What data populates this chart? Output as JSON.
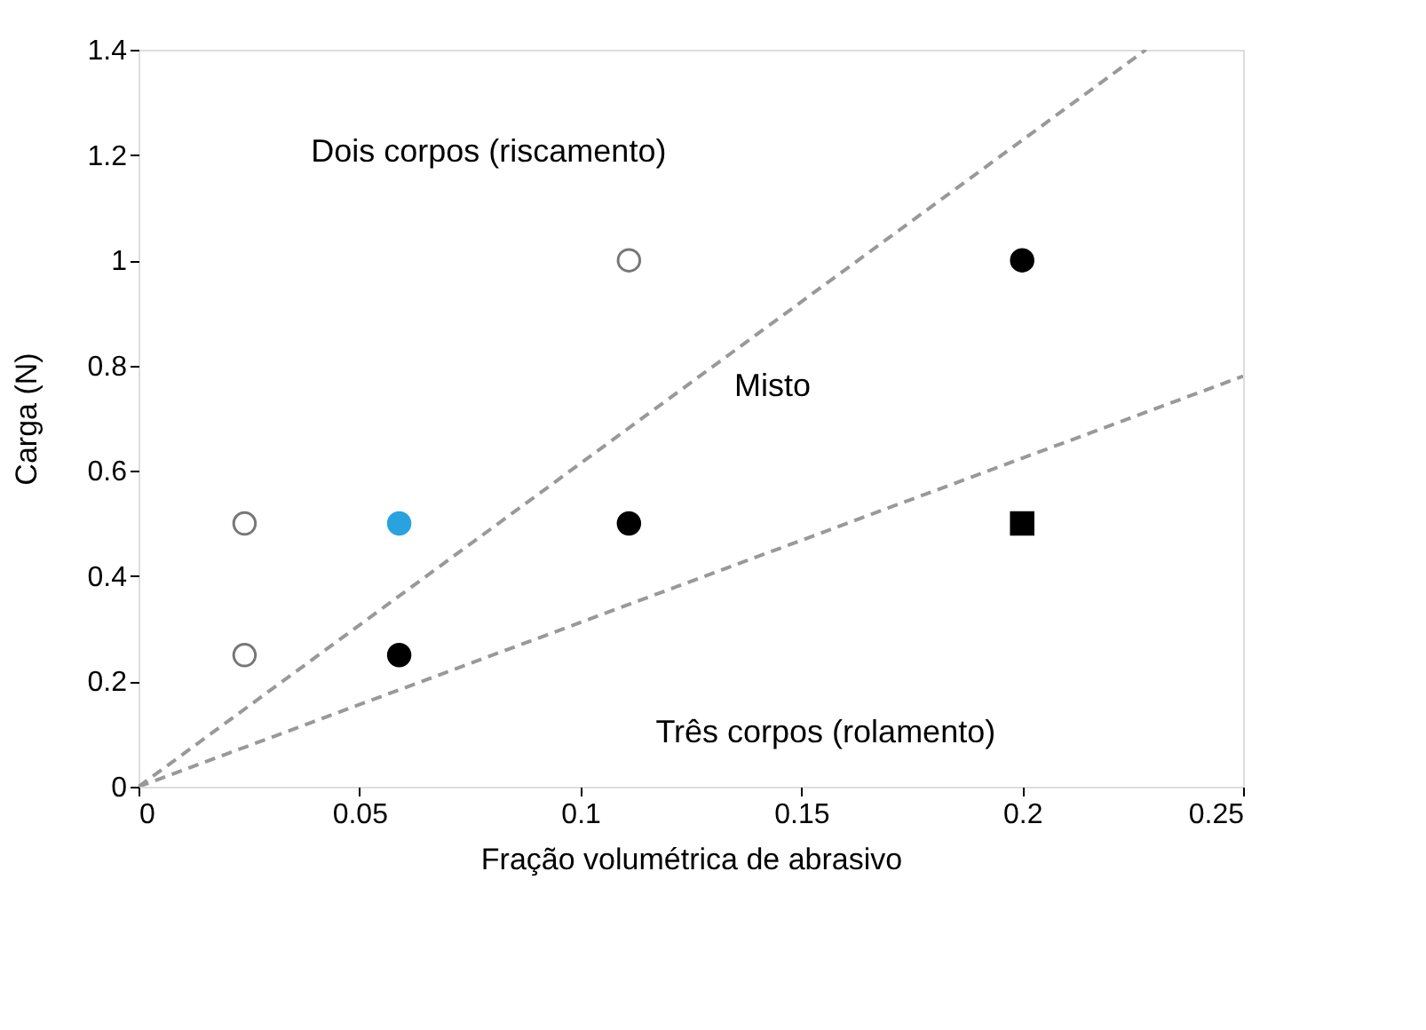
{
  "chart_data": {
    "type": "scatter",
    "xlabel": "Fração volumétrica de abrasivo",
    "ylabel": "Carga (N)",
    "xlim": [
      0,
      0.25
    ],
    "xticks": [
      0,
      0.05,
      0.1,
      0.15,
      0.2,
      0.25
    ],
    "ylim": [
      0,
      1.4
    ],
    "yticks": [
      0,
      0.2,
      0.4,
      0.6,
      0.8,
      1,
      1.2,
      1.4
    ],
    "grid": false,
    "series": [
      {
        "type": "line",
        "color": "#999999",
        "line_style": "dashed",
        "marker": "none",
        "x": [
          0,
          0.228
        ],
        "values": [
          0,
          1.4
        ]
      },
      {
        "type": "line",
        "color": "#999999",
        "line_style": "dashed",
        "marker": "none",
        "x": [
          0,
          0.25
        ],
        "values": [
          0,
          0.78
        ]
      },
      {
        "color": "#ffffff",
        "marker": "circle",
        "x": [
          0.024,
          0.024,
          0.111
        ],
        "values": [
          0.5,
          0.25,
          1.0
        ]
      },
      {
        "color": "#000000",
        "marker": "circle",
        "x": [
          0.059,
          0.111,
          0.2
        ],
        "values": [
          0.25,
          0.5,
          1.0
        ]
      },
      {
        "color": "#29a3e0",
        "marker": "circle",
        "x": [
          0.059
        ],
        "values": [
          0.5
        ]
      },
      {
        "color": "#000000",
        "marker": "square",
        "x": [
          0.2
        ],
        "values": [
          0.5
        ]
      }
    ],
    "annotations": [
      "Dois corpos (riscamento)",
      "Misto",
      "Três corpos (rolamento)"
    ]
  }
}
